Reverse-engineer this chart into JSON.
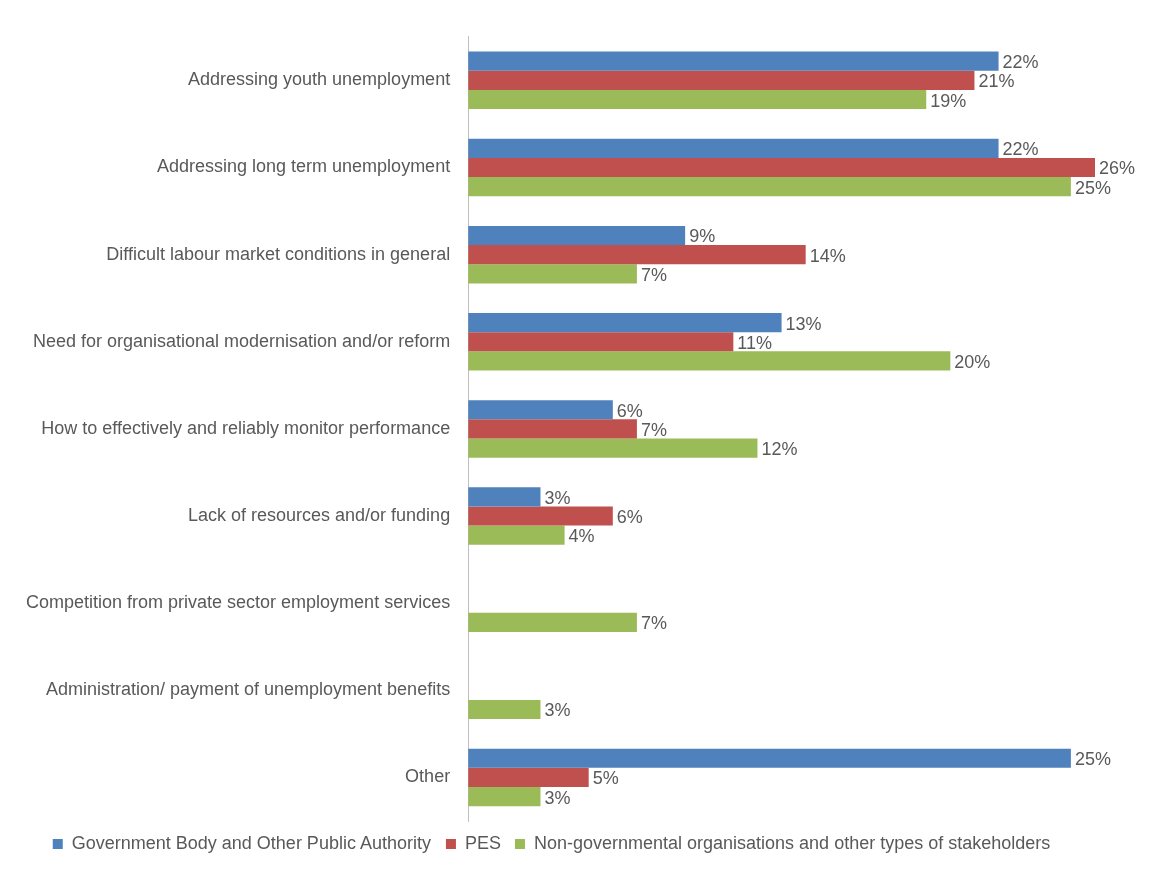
{
  "chart_data": {
    "type": "bar",
    "orientation": "horizontal",
    "legend": "bottom",
    "grid": false,
    "categories": [
      "Addressing youth unemployment",
      "Addressing long term unemployment",
      "Difficult labour market conditions in general",
      "Need for organisational modernisation and/or reform",
      "How to effectively and reliably monitor performance",
      "Lack of resources and/or funding",
      "Competition from private sector employment services",
      "Administration/ payment of unemployment benefits",
      "Other"
    ],
    "series": [
      {
        "name": "Government Body and Other Public Authority",
        "color": "#4f81bd",
        "values": [
          22,
          22,
          9,
          13,
          6,
          3,
          null,
          null,
          25
        ],
        "value_labels": [
          "22%",
          "22%",
          "9%",
          "13%",
          "6%",
          "3%",
          null,
          null,
          "25%"
        ]
      },
      {
        "name": "PES",
        "color": "#c0504d",
        "values": [
          21,
          26,
          14,
          11,
          7,
          6,
          null,
          null,
          5
        ],
        "value_labels": [
          "21%",
          "26%",
          "14%",
          "11%",
          "7%",
          "6%",
          null,
          null,
          "5%"
        ]
      },
      {
        "name": "Non-governmental organisations and other types of stakeholders",
        "color": "#9bbb59",
        "values": [
          19,
          25,
          7,
          20,
          12,
          4,
          7,
          3,
          3
        ],
        "value_labels": [
          "19%",
          "25%",
          "7%",
          "20%",
          "12%",
          "4%",
          "7%",
          "3%",
          "3%"
        ]
      }
    ]
  }
}
